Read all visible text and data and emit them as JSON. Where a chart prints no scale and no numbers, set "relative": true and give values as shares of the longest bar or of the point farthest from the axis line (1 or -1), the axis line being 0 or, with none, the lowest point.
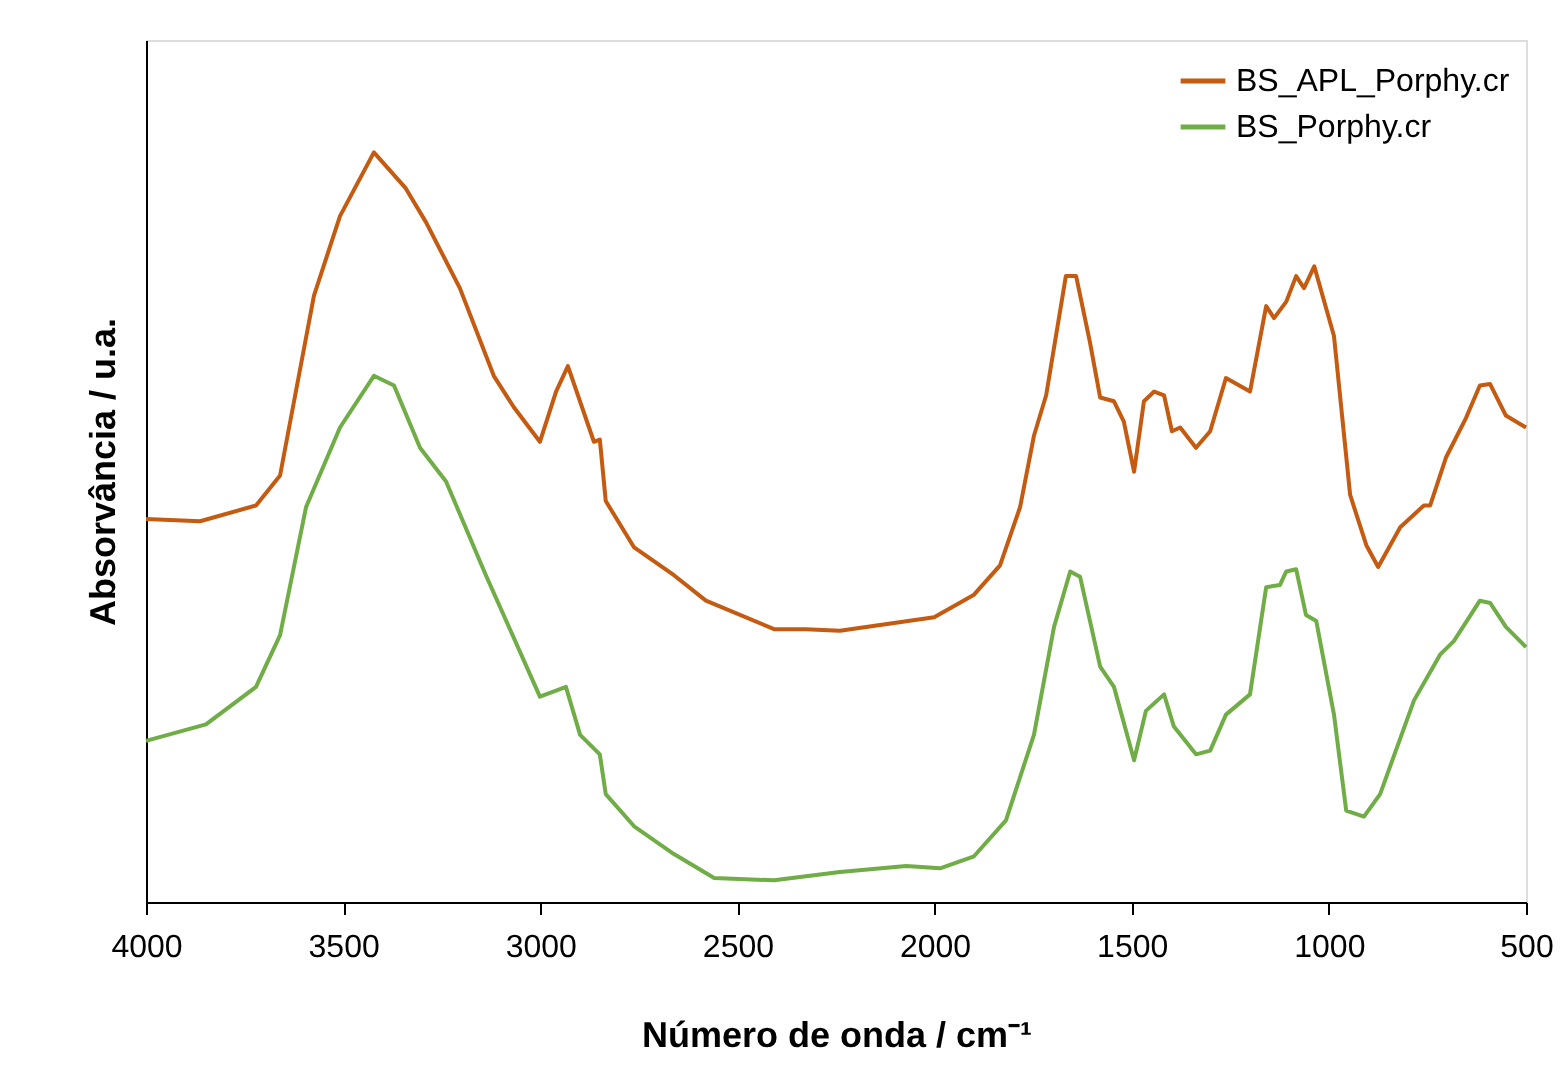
{
  "chart_data": {
    "type": "line",
    "relative": true,
    "xlabel": "Número de onda / cm⁻¹",
    "ylabel": "Absorvância / u.a.",
    "xlim": [
      4000,
      500
    ],
    "xticks": [
      4000,
      3500,
      3000,
      2500,
      2000,
      1500,
      1000,
      500
    ],
    "grid": false,
    "legend": "top right",
    "marker": "none",
    "line_style": "solid",
    "series": [
      {
        "name": "BS_APL_Porphy.cr",
        "color": "#c55a11",
        "x": [
          4000,
          3863,
          3721,
          3660,
          3574,
          3508,
          3422,
          3341,
          3290,
          3204,
          3118,
          3067,
          3001,
          2960,
          2930,
          2864,
          2849,
          2834,
          2762,
          2661,
          2580,
          2407,
          2326,
          2240,
          2001,
          1900,
          1834,
          1783,
          1748,
          1717,
          1667,
          1641,
          1606,
          1580,
          1545,
          1520,
          1494,
          1469,
          1443,
          1418,
          1398,
          1377,
          1337,
          1301,
          1261,
          1200,
          1159,
          1139,
          1108,
          1083,
          1063,
          1037,
          987,
          946,
          905,
          875,
          819,
          759,
          743,
          703,
          652,
          617,
          591,
          551,
          500
        ],
        "values": [
          0.511,
          0.508,
          0.529,
          0.569,
          0.809,
          0.915,
          1.0,
          0.952,
          0.907,
          0.819,
          0.702,
          0.66,
          0.614,
          0.681,
          0.715,
          0.614,
          0.617,
          0.535,
          0.473,
          0.436,
          0.402,
          0.364,
          0.364,
          0.362,
          0.38,
          0.41,
          0.449,
          0.527,
          0.622,
          0.676,
          0.835,
          0.835,
          0.747,
          0.673,
          0.668,
          0.641,
          0.574,
          0.668,
          0.681,
          0.676,
          0.628,
          0.633,
          0.606,
          0.628,
          0.699,
          0.681,
          0.795,
          0.779,
          0.801,
          0.835,
          0.819,
          0.848,
          0.755,
          0.543,
          0.476,
          0.447,
          0.5,
          0.529,
          0.529,
          0.593,
          0.646,
          0.689,
          0.691,
          0.649,
          0.633
        ]
      },
      {
        "name": "BS_Porphy.cr",
        "color": "#70ad47",
        "x": [
          4000,
          3848,
          3721,
          3660,
          3594,
          3508,
          3422,
          3371,
          3305,
          3239,
          3138,
          3001,
          2960,
          2935,
          2899,
          2849,
          2834,
          2762,
          2661,
          2559,
          2407,
          2240,
          2072,
          1986,
          1900,
          1819,
          1748,
          1697,
          1656,
          1631,
          1580,
          1545,
          1494,
          1464,
          1418,
          1393,
          1337,
          1301,
          1261,
          1200,
          1159,
          1124,
          1108,
          1083,
          1058,
          1032,
          987,
          956,
          911,
          870,
          784,
          718,
          683,
          617,
          591,
          551,
          500
        ],
        "values": [
          0.215,
          0.237,
          0.287,
          0.356,
          0.527,
          0.633,
          0.702,
          0.689,
          0.606,
          0.561,
          0.436,
          0.274,
          0.282,
          0.287,
          0.223,
          0.197,
          0.144,
          0.101,
          0.064,
          0.032,
          0.029,
          0.04,
          0.048,
          0.045,
          0.061,
          0.109,
          0.223,
          0.367,
          0.441,
          0.434,
          0.314,
          0.287,
          0.189,
          0.255,
          0.277,
          0.234,
          0.197,
          0.202,
          0.25,
          0.277,
          0.42,
          0.423,
          0.441,
          0.444,
          0.383,
          0.375,
          0.25,
          0.122,
          0.114,
          0.144,
          0.269,
          0.33,
          0.348,
          0.402,
          0.399,
          0.367,
          0.34
        ]
      }
    ]
  }
}
